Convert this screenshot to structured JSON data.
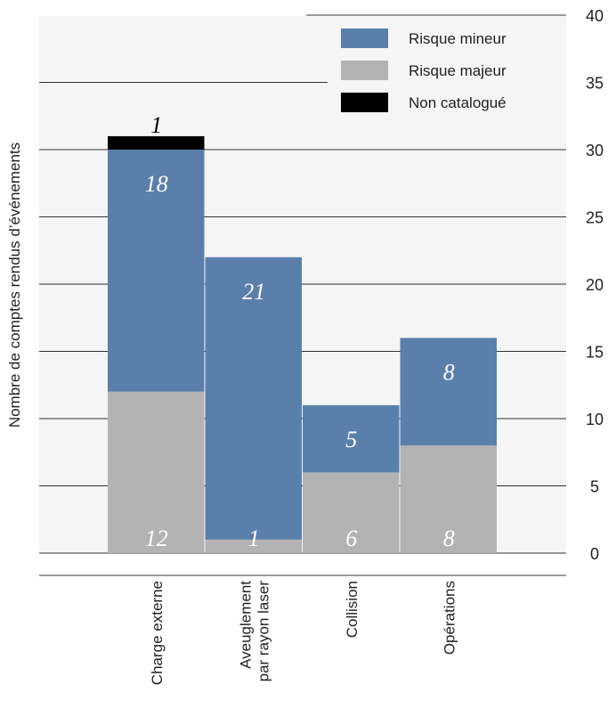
{
  "chart_data": {
    "type": "bar",
    "stacked": true,
    "categories": [
      "Charge externe",
      "Aveuglement par rayon laser",
      "Collision",
      "Opérations"
    ],
    "category_lines": [
      [
        "Charge externe"
      ],
      [
        "Aveuglement",
        "par rayon laser"
      ],
      [
        "Collision"
      ],
      [
        "Opérations"
      ]
    ],
    "series": [
      {
        "name": "Risque majeur",
        "values": [
          12,
          1,
          6,
          8
        ],
        "color": "#b3b3b3",
        "label_color": "#ffffff"
      },
      {
        "name": "Risque mineur",
        "values": [
          18,
          21,
          5,
          8
        ],
        "color": "#5b7fab",
        "label_color": "#ffffff"
      },
      {
        "name": "Non catalogué",
        "values": [
          1,
          0,
          0,
          0
        ],
        "color": "#000000",
        "label_color": "#000000"
      }
    ],
    "legend_order": [
      "Risque mineur",
      "Risque majeur",
      "Non catalogué"
    ],
    "ylabel": "Nombre de comptes rendus d’événements",
    "ylim": [
      0,
      40
    ],
    "yticks": [
      0,
      5,
      10,
      15,
      20,
      25,
      30,
      35,
      40
    ],
    "y_axis_side": "right",
    "grid": true,
    "legend_position": "top-right",
    "background": "#f5f5f5"
  }
}
